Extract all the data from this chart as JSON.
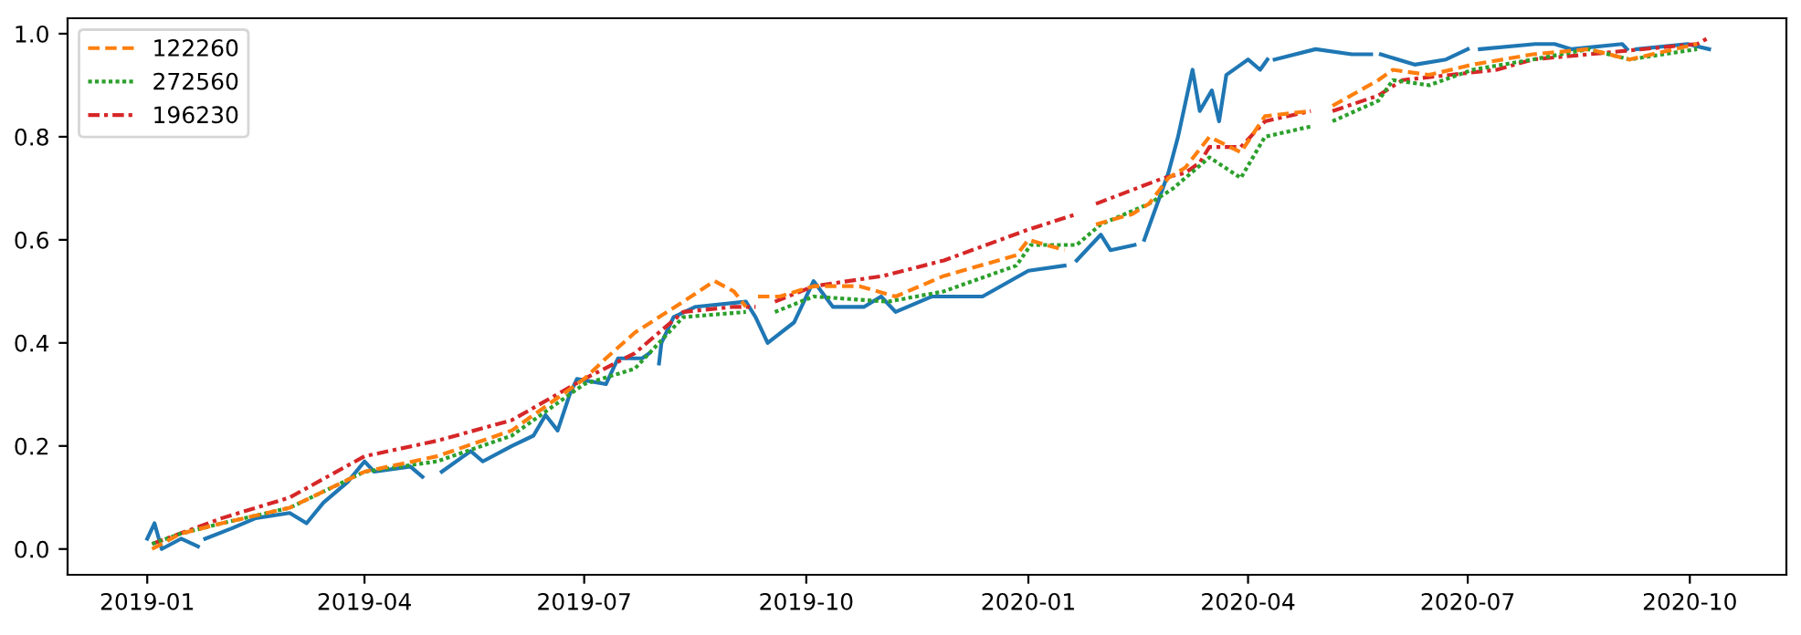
{
  "chart_data": {
    "type": "line",
    "legend": "top left",
    "grid": false,
    "xlim": [
      "2018-11-29",
      "2020-11-10"
    ],
    "ylim": [
      -0.05,
      1.03
    ],
    "xticks": [
      "2019-01",
      "2019-04",
      "2019-07",
      "2019-10",
      "2020-01",
      "2020-04",
      "2020-07",
      "2020-10"
    ],
    "yticks": [
      {
        "value": 0,
        "label": "0.0"
      },
      {
        "value": 0.2,
        "label": "0.2"
      },
      {
        "value": 0.4,
        "label": "0.4"
      },
      {
        "value": 0.6,
        "label": "0.6"
      },
      {
        "value": 0.8,
        "label": "0.8"
      },
      {
        "value": 1,
        "label": "1.0"
      }
    ],
    "series": [
      {
        "color": "#1f77b4",
        "line_style": "solid",
        "x": [
          "2019-01-01",
          "2019-01-04",
          "2019-01-07",
          "2019-01-15",
          "2019-01-22",
          "2019-01-23",
          "2019-01-25",
          "2019-02-05",
          "2019-02-15",
          "2019-03-01",
          "2019-03-08",
          "2019-03-15",
          "2019-03-25",
          "2019-04-01",
          "2019-04-05",
          "2019-04-20",
          "2019-04-25",
          "2019-04-29",
          "2019-05-03",
          "2019-05-15",
          "2019-05-20",
          "2019-06-01",
          "2019-06-10",
          "2019-06-15",
          "2019-06-20",
          "2019-06-25",
          "2019-06-28",
          "2019-07-10",
          "2019-07-15",
          "2019-07-25",
          "2019-07-28",
          "2019-07-30",
          "2019-08-01",
          "2019-08-02",
          "2019-08-07",
          "2019-08-16",
          "2019-09-06",
          "2019-09-10",
          "2019-09-15",
          "2019-09-26",
          "2019-10-04",
          "2019-10-12",
          "2019-10-25",
          "2019-11-01",
          "2019-11-07",
          "2019-11-22",
          "2019-12-02",
          "2019-12-13",
          "2020-01-01",
          "2020-01-16",
          "2020-01-18",
          "2020-01-21",
          "2020-01-31",
          "2020-02-04",
          "2020-02-14",
          "2020-02-16",
          "2020-02-18",
          "2020-02-28",
          "2020-03-03",
          "2020-03-09",
          "2020-03-12",
          "2020-03-17",
          "2020-03-20",
          "2020-03-23",
          "2020-03-29",
          "2020-04-01",
          "2020-04-06",
          "2020-04-09",
          "2020-04-10",
          "2020-04-12",
          "2020-04-29",
          "2020-05-14",
          "2020-05-22",
          "2020-05-24",
          "2020-05-26",
          "2020-06-09",
          "2020-06-22",
          "2020-07-01",
          "2020-07-03",
          "2020-07-06",
          "2020-07-29",
          "2020-08-06",
          "2020-08-13",
          "2020-09-03",
          "2020-09-05",
          "2020-09-07",
          "2020-09-09",
          "2020-09-30",
          "2020-10-09"
        ],
        "values": [
          0.02,
          0.05,
          0.0,
          0.02,
          0.005,
          null,
          0.02,
          0.04,
          0.06,
          0.07,
          0.05,
          0.09,
          0.13,
          0.17,
          0.15,
          0.16,
          0.14,
          null,
          0.15,
          0.19,
          0.17,
          0.2,
          0.22,
          0.26,
          0.23,
          0.3,
          0.33,
          0.32,
          0.37,
          0.37,
          0.38,
          null,
          0.36,
          0.4,
          0.45,
          0.47,
          0.48,
          0.45,
          0.4,
          0.44,
          0.52,
          0.47,
          0.47,
          0.49,
          0.46,
          0.49,
          0.49,
          0.49,
          0.54,
          0.55,
          null,
          0.56,
          0.61,
          0.58,
          0.59,
          null,
          0.6,
          0.73,
          0.8,
          0.93,
          0.85,
          0.89,
          0.83,
          0.92,
          0.94,
          0.95,
          0.93,
          0.95,
          null,
          0.95,
          0.97,
          0.96,
          0.96,
          null,
          0.96,
          0.94,
          0.95,
          0.97,
          null,
          0.97,
          0.98,
          0.98,
          0.97,
          0.98,
          0.97,
          null,
          0.97,
          0.98,
          0.97
        ]
      },
      {
        "name": "122260",
        "color": "#ff7f0e",
        "line_style": "dashed",
        "x": [
          "2019-01-03",
          "2019-01-15",
          "2019-02-01",
          "2019-03-01",
          "2019-04-01",
          "2019-05-01",
          "2019-06-01",
          "2019-07-01",
          "2019-07-10",
          "2019-07-22",
          "2019-08-11",
          "2019-08-24",
          "2019-09-01",
          "2019-09-06",
          "2019-09-08",
          "2019-09-11",
          "2019-09-20",
          "2019-10-04",
          "2019-10-23",
          "2019-11-07",
          "2019-11-27",
          "2019-12-27",
          "2020-01-01",
          "2020-01-16",
          "2020-01-24",
          "2020-01-29",
          "2020-02-13",
          "2020-02-20",
          "2020-02-28",
          "2020-03-06",
          "2020-03-16",
          "2020-03-29",
          "2020-04-08",
          "2020-04-27",
          "2020-05-02",
          "2020-05-06",
          "2020-05-25",
          "2020-05-31",
          "2020-06-15",
          "2020-07-03",
          "2020-07-28",
          "2020-08-20",
          "2020-09-06",
          "2020-10-04"
        ],
        "values": [
          0.0,
          0.03,
          0.05,
          0.08,
          0.15,
          0.18,
          0.23,
          0.33,
          0.37,
          0.42,
          0.48,
          0.52,
          0.5,
          0.47,
          null,
          0.49,
          0.49,
          0.51,
          0.51,
          0.49,
          0.53,
          0.57,
          0.6,
          0.58,
          null,
          0.63,
          0.65,
          0.67,
          0.72,
          0.74,
          0.8,
          0.77,
          0.84,
          0.85,
          null,
          0.86,
          0.91,
          0.93,
          0.92,
          0.94,
          0.96,
          0.97,
          0.95,
          0.98
        ]
      },
      {
        "name": "272560",
        "color": "#2ca02c",
        "line_style": "dotted",
        "x": [
          "2019-01-03",
          "2019-01-15",
          "2019-02-01",
          "2019-03-01",
          "2019-04-01",
          "2019-05-01",
          "2019-06-01",
          "2019-07-01",
          "2019-07-22",
          "2019-08-11",
          "2019-09-06",
          "2019-09-12",
          "2019-09-18",
          "2019-10-04",
          "2019-11-04",
          "2019-11-27",
          "2019-12-27",
          "2020-01-02",
          "2020-01-21",
          "2020-01-31",
          "2020-02-20",
          "2020-03-01",
          "2020-03-06",
          "2020-03-16",
          "2020-03-29",
          "2020-04-08",
          "2020-04-27",
          "2020-05-02",
          "2020-05-06",
          "2020-05-25",
          "2020-05-31",
          "2020-06-15",
          "2020-07-03",
          "2020-07-28",
          "2020-08-20",
          "2020-09-06",
          "2020-10-04"
        ],
        "values": [
          0.01,
          0.03,
          0.05,
          0.08,
          0.15,
          0.17,
          0.22,
          0.32,
          0.35,
          0.45,
          0.46,
          null,
          0.46,
          0.49,
          0.48,
          0.5,
          0.55,
          0.59,
          0.59,
          0.63,
          0.67,
          0.7,
          0.72,
          0.76,
          0.72,
          0.8,
          0.82,
          null,
          0.83,
          0.87,
          0.91,
          0.9,
          0.93,
          0.95,
          0.97,
          0.95,
          0.97
        ]
      },
      {
        "name": "196230",
        "color": "#d62728",
        "line_style": "dashdot",
        "x": [
          "2019-01-03",
          "2019-02-01",
          "2019-03-01",
          "2019-04-01",
          "2019-05-01",
          "2019-06-01",
          "2019-07-01",
          "2019-07-22",
          "2019-08-11",
          "2019-09-01",
          "2019-09-10",
          "2019-09-14",
          "2019-09-18",
          "2019-10-04",
          "2019-11-02",
          "2019-11-27",
          "2020-01-01",
          "2020-01-21",
          "2020-01-25",
          "2020-01-29",
          "2020-02-26",
          "2020-03-06",
          "2020-03-12",
          "2020-03-16",
          "2020-03-29",
          "2020-04-08",
          "2020-04-27",
          "2020-05-02",
          "2020-05-06",
          "2020-05-25",
          "2020-06-04",
          "2020-07-13",
          "2020-07-28",
          "2020-08-20",
          "2020-10-04",
          "2020-10-08"
        ],
        "values": [
          0.01,
          0.06,
          0.1,
          0.18,
          0.21,
          0.25,
          0.33,
          0.38,
          0.46,
          0.47,
          0.47,
          null,
          0.48,
          0.51,
          0.53,
          0.56,
          0.62,
          0.65,
          null,
          0.67,
          0.72,
          0.73,
          0.75,
          0.78,
          0.78,
          0.83,
          0.85,
          null,
          0.85,
          0.88,
          0.91,
          0.93,
          0.95,
          0.96,
          0.98,
          0.99
        ]
      }
    ]
  }
}
